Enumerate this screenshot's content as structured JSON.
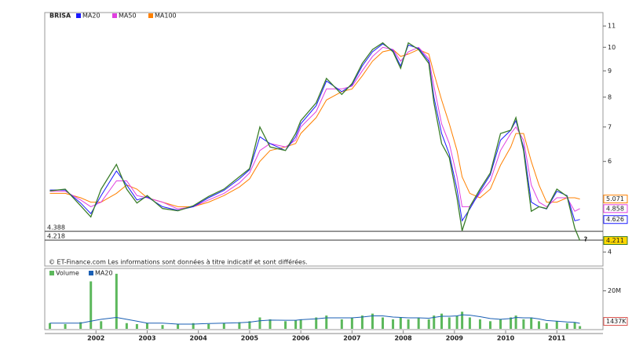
{
  "chart_data": [
    {
      "type": "line",
      "title": "BRISA",
      "log_scale": true,
      "x": [
        2001.1,
        2001.4,
        2001.7,
        2001.9,
        2002.1,
        2002.4,
        2002.6,
        2002.8,
        2003.0,
        2003.3,
        2003.6,
        2003.9,
        2004.2,
        2004.5,
        2004.8,
        2005.0,
        2005.2,
        2005.4,
        2005.7,
        2005.9,
        2006.0,
        2006.3,
        2006.5,
        2006.8,
        2007.0,
        2007.2,
        2007.4,
        2007.6,
        2007.8,
        2007.95,
        2008.1,
        2008.3,
        2008.5,
        2008.6,
        2008.75,
        2008.9,
        2009.05,
        2009.15,
        2009.3,
        2009.5,
        2009.7,
        2009.9,
        2010.1,
        2010.2,
        2010.35,
        2010.5,
        2010.65,
        2010.8,
        2011.0,
        2011.2,
        2011.35,
        2011.45
      ],
      "series": [
        {
          "name": "BRISA",
          "color": "#3a7d2a",
          "values": [
            5.26,
            5.3,
            4.92,
            4.68,
            5.3,
            5.92,
            5.3,
            4.98,
            5.15,
            4.86,
            4.81,
            4.92,
            5.13,
            5.3,
            5.6,
            5.81,
            7.0,
            6.4,
            6.3,
            6.8,
            7.2,
            7.8,
            8.7,
            8.1,
            8.5,
            9.3,
            9.9,
            10.2,
            9.8,
            9.1,
            10.2,
            9.9,
            9.3,
            7.8,
            6.5,
            6.1,
            5.1,
            4.4,
            4.9,
            5.3,
            5.7,
            6.8,
            6.9,
            7.3,
            6.3,
            4.8,
            4.9,
            4.86,
            5.3,
            5.13,
            4.45,
            4.211
          ]
        },
        {
          "name": "MA20",
          "color": "#1a1aff",
          "values": [
            5.28,
            5.28,
            4.98,
            4.75,
            5.15,
            5.75,
            5.4,
            5.05,
            5.12,
            4.9,
            4.82,
            4.9,
            5.1,
            5.27,
            5.55,
            5.78,
            6.7,
            6.5,
            6.3,
            6.7,
            7.1,
            7.7,
            8.6,
            8.2,
            8.45,
            9.2,
            9.8,
            10.15,
            9.85,
            9.2,
            10.1,
            9.95,
            9.4,
            8.0,
            6.8,
            6.2,
            5.3,
            4.6,
            4.85,
            5.25,
            5.65,
            6.6,
            6.9,
            7.2,
            6.4,
            5.0,
            4.9,
            4.85,
            5.25,
            5.15,
            4.6,
            4.626
          ]
        },
        {
          "name": "MA50",
          "color": "#e040e0",
          "values": [
            5.25,
            5.25,
            5.05,
            4.9,
            5.0,
            5.5,
            5.5,
            5.15,
            5.1,
            5.0,
            4.85,
            4.9,
            5.05,
            5.2,
            5.45,
            5.7,
            6.3,
            6.5,
            6.4,
            6.6,
            7.0,
            7.5,
            8.3,
            8.3,
            8.4,
            9.0,
            9.6,
            10.0,
            9.9,
            9.4,
            9.8,
            10.0,
            9.5,
            8.4,
            7.1,
            6.5,
            5.6,
            4.9,
            4.9,
            5.2,
            5.5,
            6.3,
            6.8,
            7.0,
            6.6,
            5.4,
            5.0,
            4.9,
            5.1,
            5.1,
            4.8,
            4.858
          ]
        },
        {
          "name": "MA100",
          "color": "#ff8000",
          "values": [
            5.2,
            5.2,
            5.1,
            5.0,
            5.0,
            5.2,
            5.4,
            5.3,
            5.1,
            5.0,
            4.9,
            4.9,
            5.0,
            5.15,
            5.35,
            5.55,
            6.0,
            6.3,
            6.4,
            6.5,
            6.8,
            7.3,
            7.9,
            8.2,
            8.3,
            8.8,
            9.4,
            9.8,
            9.9,
            9.6,
            9.7,
            9.9,
            9.7,
            8.9,
            7.9,
            7.1,
            6.3,
            5.6,
            5.2,
            5.1,
            5.3,
            5.9,
            6.4,
            6.8,
            6.8,
            6.0,
            5.4,
            5.0,
            5.0,
            5.1,
            5.1,
            5.071
          ]
        }
      ],
      "xlim": [
        2001.0,
        2011.9
      ],
      "ylim": [
        3.77,
        11.6
      ],
      "yticks": [
        4,
        6,
        7,
        8,
        9,
        10,
        11
      ],
      "hlines": [
        4.388,
        4.218
      ],
      "annotation": "?",
      "note": "© ET-Finance.com Les informations sont données à titre indicatif et sont différées."
    },
    {
      "type": "bar",
      "x": [
        2001.1,
        2001.4,
        2001.7,
        2001.9,
        2002.1,
        2002.4,
        2002.6,
        2002.8,
        2003.0,
        2003.3,
        2003.6,
        2003.9,
        2004.2,
        2004.5,
        2004.8,
        2005.0,
        2005.2,
        2005.4,
        2005.7,
        2005.9,
        2006.0,
        2006.3,
        2006.5,
        2006.8,
        2007.0,
        2007.2,
        2007.4,
        2007.6,
        2007.8,
        2007.95,
        2008.1,
        2008.3,
        2008.5,
        2008.6,
        2008.75,
        2008.9,
        2009.05,
        2009.15,
        2009.3,
        2009.5,
        2009.7,
        2009.9,
        2010.1,
        2010.2,
        2010.35,
        2010.5,
        2010.65,
        2010.8,
        2011.0,
        2011.2,
        2011.35,
        2011.45
      ],
      "series": [
        {
          "name": "Volume",
          "color": "#5cb85c",
          "values": [
            3000000,
            2500000,
            3500000,
            25000000,
            4000000,
            29000000,
            3000000,
            2500000,
            3000000,
            2000000,
            2500000,
            3000000,
            2500000,
            3000000,
            3500000,
            4000000,
            6000000,
            5000000,
            4000000,
            4500000,
            5000000,
            6000000,
            7000000,
            5000000,
            6000000,
            7000000,
            8000000,
            6000000,
            5000000,
            6000000,
            5000000,
            6000000,
            5000000,
            7000000,
            8000000,
            6000000,
            7000000,
            9000000,
            6000000,
            5000000,
            4000000,
            5000000,
            6000000,
            7000000,
            5000000,
            6000000,
            4000000,
            3000000,
            4000000,
            3000000,
            3500000,
            1437000
          ],
          "value_labels": [
            null,
            null,
            null,
            null,
            null,
            null,
            null,
            null,
            null,
            null,
            null,
            null,
            null,
            null,
            null,
            null,
            null,
            null,
            null,
            null,
            null,
            null,
            null,
            null,
            null,
            null,
            null,
            null,
            null,
            null,
            null,
            null,
            null,
            null,
            null,
            null,
            null,
            null,
            null,
            null,
            null,
            null,
            null,
            null,
            null,
            null,
            null,
            null,
            null,
            null,
            null,
            "1437K"
          ]
        },
        {
          "name": "MA20",
          "color": "#1a5fb4",
          "values": [
            3000000,
            3000000,
            3000000,
            4000000,
            5000000,
            6000000,
            5000000,
            4000000,
            3000000,
            3000000,
            2500000,
            2500000,
            2800000,
            3000000,
            3200000,
            3500000,
            4200000,
            4600000,
            4500000,
            4500000,
            4800000,
            5300000,
            5800000,
            5800000,
            5800000,
            6200000,
            6800000,
            6800000,
            6200000,
            6000000,
            5800000,
            5800000,
            5600000,
            6000000,
            6600000,
            6600000,
            6800000,
            7400000,
            7200000,
            6400000,
            5400000,
            5000000,
            5400000,
            6000000,
            5800000,
            5800000,
            5200000,
            4400000,
            4000000,
            3600000,
            3400000,
            2900000
          ]
        }
      ],
      "xlim": [
        2001.0,
        2011.9
      ],
      "ylim": [
        0,
        31000000
      ],
      "yticks": [
        {
          "value": 20000000,
          "label": "20M"
        }
      ],
      "xticks": [
        2002,
        2003,
        2004,
        2005,
        2006,
        2007,
        2008,
        2009,
        2010,
        2011
      ]
    }
  ]
}
